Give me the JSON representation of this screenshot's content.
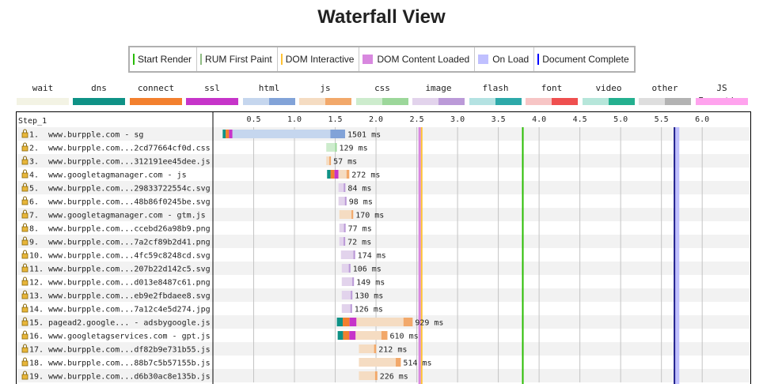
{
  "page": {
    "title": "Waterfall View"
  },
  "legend": [
    {
      "label": "Start Render",
      "color": "#28bc00",
      "kind": "line"
    },
    {
      "label": "RUM First Paint",
      "color": "#8fbc83",
      "kind": "line"
    },
    {
      "label": "DOM Interactive",
      "color": "#ffc233",
      "kind": "line"
    },
    {
      "label": "DOM Content Loaded",
      "color": "#d888df",
      "kind": "box"
    },
    {
      "label": "On Load",
      "color": "#c0c0ff",
      "kind": "box"
    },
    {
      "label": "Document Complete",
      "color": "#0000ff",
      "kind": "line"
    }
  ],
  "resource_types": [
    {
      "label": "wait",
      "light": "#f3f3e4",
      "dark": "#f3f3e4"
    },
    {
      "label": "dns",
      "light": "#0f9286",
      "dark": "#0f9286"
    },
    {
      "label": "connect",
      "light": "#f3802e",
      "dark": "#f3802e"
    },
    {
      "label": "ssl",
      "light": "#c634c9",
      "dark": "#c634c9"
    },
    {
      "label": "html",
      "light": "#c5d6ee",
      "dark": "#82a3d8"
    },
    {
      "label": "js",
      "light": "#f5dcc2",
      "dark": "#f2a86a"
    },
    {
      "label": "css",
      "light": "#cdeccd",
      "dark": "#9cd79a"
    },
    {
      "label": "image",
      "light": "#e2d3ec",
      "dark": "#bb9ad8"
    },
    {
      "label": "flash",
      "light": "#b4e2e2",
      "dark": "#2da9a9"
    },
    {
      "label": "font",
      "light": "#f7c5c5",
      "dark": "#ef4f4f"
    },
    {
      "label": "video",
      "light": "#b6e6da",
      "dark": "#24b08f"
    },
    {
      "label": "other",
      "light": "#dedede",
      "dark": "#b3b3b3"
    },
    {
      "label": "JS Execution",
      "light": "#ffa3ee",
      "dark": "#ffa3ee"
    }
  ],
  "waterfall": {
    "step_label": "Step_1",
    "ticks": [
      "0.5",
      "1.0",
      "1.5",
      "2.0",
      "2.5",
      "3.0",
      "3.5",
      "4.0",
      "4.5",
      "5.0",
      "5.5",
      "6.0"
    ],
    "max_seconds": 6.6,
    "markers": {
      "rum_first_paint": 1.87,
      "dom_content_loaded": 2.53,
      "dom_interactive": 2.56,
      "start_render": 3.8,
      "on_load": 5.69,
      "document_complete": 5.66
    },
    "requests": [
      {
        "num": "1.",
        "label": "www.burpple.com - sg",
        "type": "html",
        "start": 0.12,
        "connect": 0.12,
        "dur": 1.501,
        "time_label": "1501 ms"
      },
      {
        "num": "2.",
        "label": "www.burpple.com...2cd77664cf0d.css",
        "type": "css",
        "start": 1.39,
        "connect": 0,
        "dur": 0.129,
        "time_label": "129 ms"
      },
      {
        "num": "3.",
        "label": "www.burpple.com...312191ee45dee.js",
        "type": "js",
        "start": 1.39,
        "connect": 0,
        "dur": 0.057,
        "time_label": "57 ms"
      },
      {
        "num": "4.",
        "label": "www.googletagmanager.com - js",
        "type": "js",
        "start": 1.4,
        "connect": 0.14,
        "dur": 0.272,
        "time_label": "272 ms"
      },
      {
        "num": "5.",
        "label": "www.burpple.com...29833722554c.svg",
        "type": "image",
        "start": 1.54,
        "connect": 0,
        "dur": 0.084,
        "time_label": "84 ms"
      },
      {
        "num": "6.",
        "label": "www.burpple.com...48b86f0245be.svg",
        "type": "image",
        "start": 1.54,
        "connect": 0,
        "dur": 0.098,
        "time_label": "98 ms"
      },
      {
        "num": "7.",
        "label": "www.googletagmanager.com - gtm.js",
        "type": "js",
        "start": 1.55,
        "connect": 0,
        "dur": 0.17,
        "time_label": "170 ms"
      },
      {
        "num": "8.",
        "label": "www.burpple.com...ccebd26a98b9.png",
        "type": "image",
        "start": 1.55,
        "connect": 0,
        "dur": 0.077,
        "time_label": "77 ms"
      },
      {
        "num": "9.",
        "label": "www.burpple.com...7a2cf89b2d41.png",
        "type": "image",
        "start": 1.55,
        "connect": 0,
        "dur": 0.072,
        "time_label": "72 ms"
      },
      {
        "num": "10.",
        "label": "www.burpple.com...4fc59c8248cd.svg",
        "type": "image",
        "start": 1.57,
        "connect": 0,
        "dur": 0.174,
        "time_label": "174 ms"
      },
      {
        "num": "11.",
        "label": "www.burpple.com...207b22d142c5.svg",
        "type": "image",
        "start": 1.58,
        "connect": 0,
        "dur": 0.106,
        "time_label": "106 ms"
      },
      {
        "num": "12.",
        "label": "www.burpple.com...d013e8487c61.png",
        "type": "image",
        "start": 1.58,
        "connect": 0,
        "dur": 0.149,
        "time_label": "149 ms"
      },
      {
        "num": "13.",
        "label": "www.burpple.com...eb9e2fbdaee8.svg",
        "type": "image",
        "start": 1.58,
        "connect": 0,
        "dur": 0.13,
        "time_label": "130 ms"
      },
      {
        "num": "14.",
        "label": "www.burpple.com...7a12c4e5d274.jpg",
        "type": "image",
        "start": 1.58,
        "connect": 0,
        "dur": 0.126,
        "time_label": "126 ms"
      },
      {
        "num": "15.",
        "label": "pagead2.google... - adsbygoogle.js",
        "type": "js",
        "start": 1.52,
        "connect": 0.24,
        "dur": 0.929,
        "time_label": "929 ms"
      },
      {
        "num": "16.",
        "label": "www.googletagservices.com - gpt.js",
        "type": "js",
        "start": 1.53,
        "connect": 0.22,
        "dur": 0.61,
        "time_label": "610 ms"
      },
      {
        "num": "17.",
        "label": "www.burpple.com...df82b9e731b55.js",
        "type": "js",
        "start": 1.79,
        "connect": 0,
        "dur": 0.212,
        "time_label": "212 ms"
      },
      {
        "num": "18.",
        "label": "www.burpple.com...88b7c5b57155b.js",
        "type": "js",
        "start": 1.79,
        "connect": 0,
        "dur": 0.514,
        "time_label": "514 ms"
      },
      {
        "num": "19.",
        "label": "www.burpple.com...d6b30ac8e135b.js",
        "type": "js",
        "start": 1.79,
        "connect": 0,
        "dur": 0.226,
        "time_label": "226 ms"
      }
    ]
  }
}
